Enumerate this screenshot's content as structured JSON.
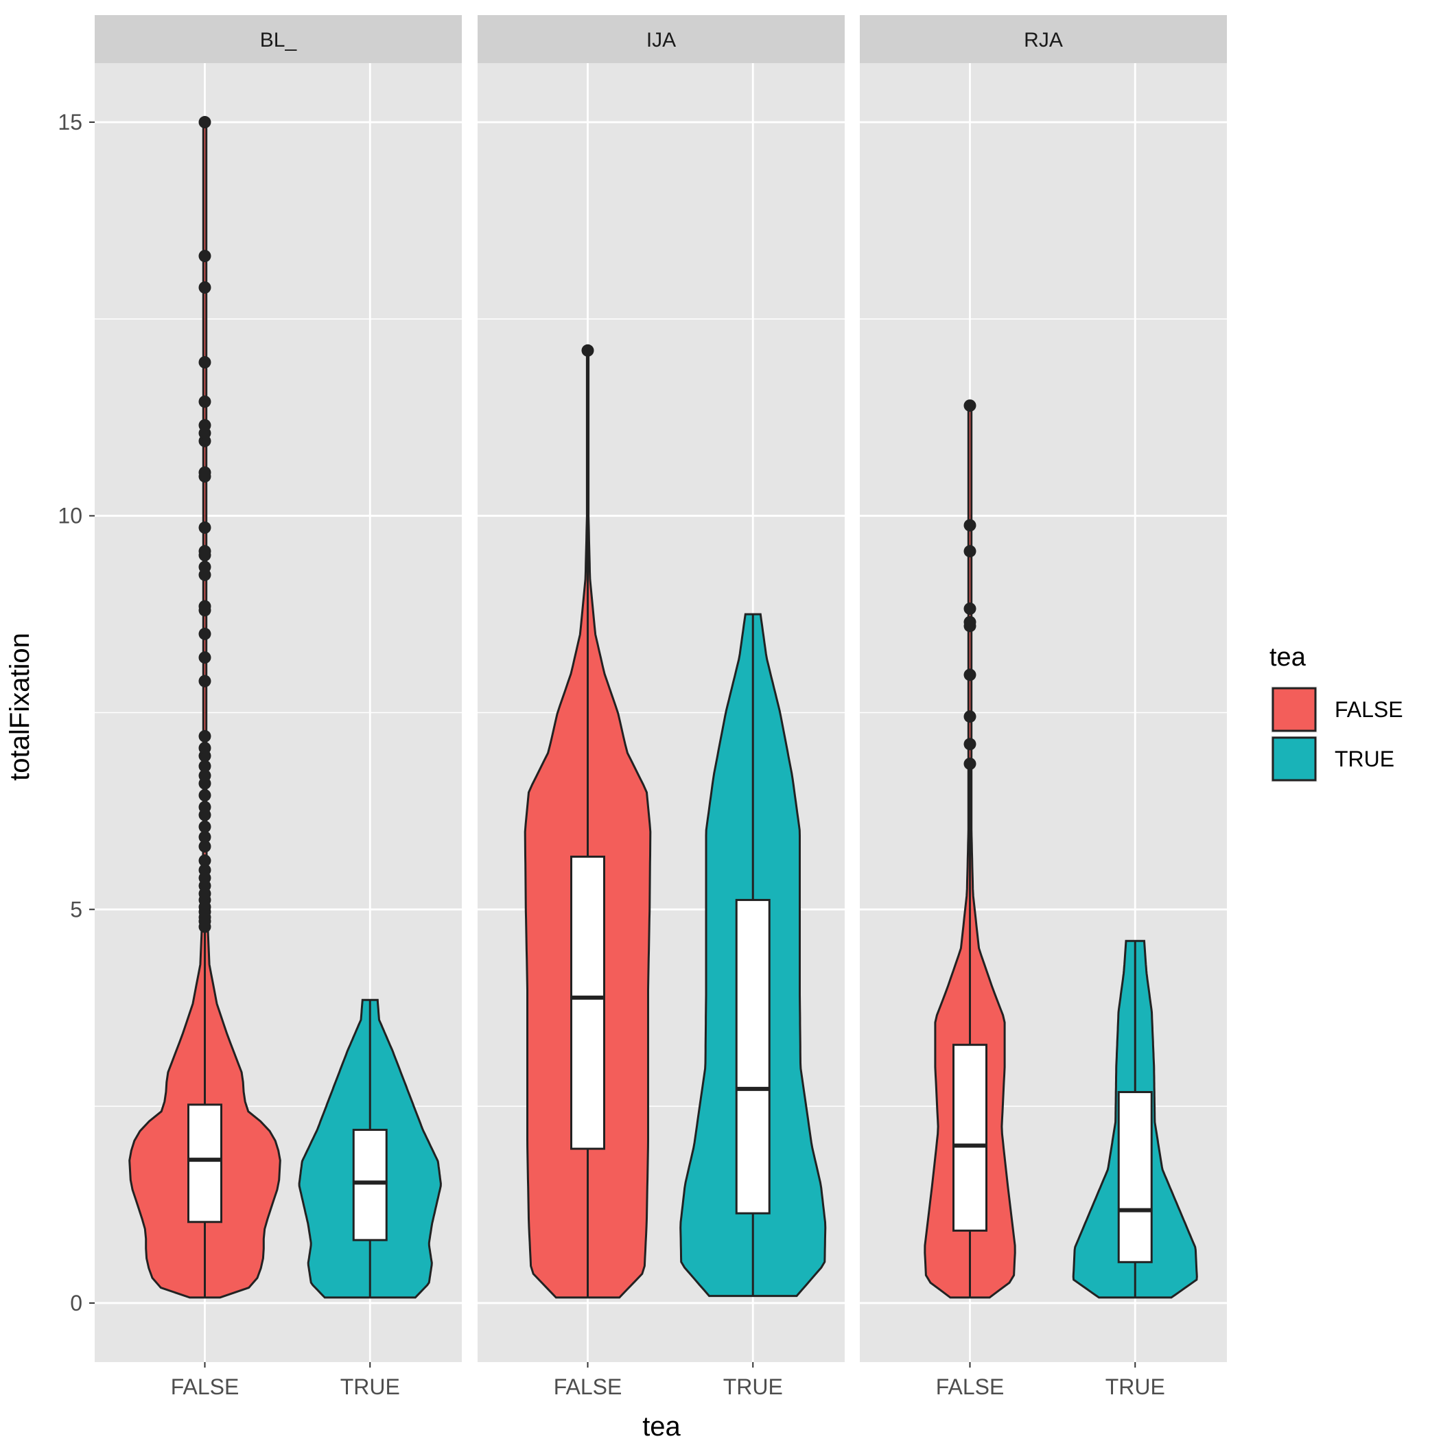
{
  "chart_data": {
    "type": "violin",
    "facet_variable": "",
    "facets": [
      "BL_",
      "IJA",
      "RJA"
    ],
    "categories": [
      "FALSE",
      "TRUE"
    ],
    "xlabel": "tea",
    "ylabel": "totalFixation",
    "ylim": [
      -0.75,
      15.75
    ],
    "yticks": [
      0,
      5,
      10,
      15
    ],
    "grid": true,
    "legend": {
      "title": "tea",
      "position": "right",
      "entries": [
        {
          "label": "FALSE",
          "color": "#F8766D"
        },
        {
          "label": "TRUE",
          "color": "#00BFC4"
        }
      ]
    },
    "colors": {
      "FALSE": "#F35E5A",
      "TRUE": "#19B3B8",
      "panel_bg": "#E5E5E5",
      "strip_bg": "#D0D0D0",
      "grid": "#FFFFFF",
      "outline": "#222222"
    },
    "panels": [
      {
        "facet": "BL_",
        "groups": [
          {
            "category": "FALSE",
            "box": {
              "q1": 1.03,
              "median": 1.82,
              "q3": 2.52,
              "whisker_low": 0.07,
              "whisker_high": 4.75
            },
            "outliers": [
              4.78,
              4.85,
              4.9,
              4.97,
              5.03,
              5.12,
              5.2,
              5.3,
              5.4,
              5.5,
              5.62,
              5.8,
              5.92,
              6.05,
              6.2,
              6.3,
              6.45,
              6.6,
              6.7,
              6.82,
              6.95,
              7.05,
              7.2,
              7.9,
              8.2,
              8.5,
              8.8,
              8.85,
              9.25,
              9.35,
              9.5,
              9.55,
              9.85,
              10.5,
              10.55,
              10.95,
              11.05,
              11.15,
              11.45,
              11.95,
              12.9,
              13.3,
              15.0
            ],
            "violin": {
              "min": 0.07,
              "max": 15.0,
              "width": [
                [
                  0.07,
                  0.2
                ],
                [
                  0.2,
                  0.6
                ],
                [
                  0.35,
                  0.72
                ],
                [
                  0.6,
                  0.78
                ],
                [
                  0.9,
                  0.78
                ],
                [
                  1.1,
                  0.84
                ],
                [
                  1.5,
                  0.98
                ],
                [
                  1.85,
                  1.0
                ],
                [
                  2.05,
                  0.94
                ],
                [
                  2.25,
                  0.82
                ],
                [
                  2.42,
                  0.58
                ],
                [
                  2.6,
                  0.52
                ],
                [
                  2.9,
                  0.5
                ],
                [
                  3.15,
                  0.4
                ],
                [
                  3.4,
                  0.3
                ],
                [
                  3.8,
                  0.16
                ],
                [
                  4.3,
                  0.06
                ],
                [
                  5.0,
                  0.03
                ],
                [
                  6.0,
                  0.02
                ],
                [
                  15.0,
                  0.02
                ]
              ]
            }
          },
          {
            "category": "TRUE",
            "box": {
              "q1": 0.8,
              "median": 1.53,
              "q3": 2.2,
              "whisker_low": 0.07,
              "whisker_high": 3.85
            },
            "outliers": [],
            "violin": {
              "min": 0.07,
              "max": 3.85,
              "width": [
                [
                  0.07,
                  0.6
                ],
                [
                  0.25,
                  0.78
                ],
                [
                  0.5,
                  0.82
                ],
                [
                  0.75,
                  0.78
                ],
                [
                  1.0,
                  0.82
                ],
                [
                  1.5,
                  0.94
                ],
                [
                  1.8,
                  0.9
                ],
                [
                  2.2,
                  0.7
                ],
                [
                  2.7,
                  0.5
                ],
                [
                  3.2,
                  0.3
                ],
                [
                  3.6,
                  0.12
                ],
                [
                  3.85,
                  0.1
                ]
              ]
            }
          }
        ]
      },
      {
        "facet": "IJA",
        "groups": [
          {
            "category": "FALSE",
            "box": {
              "q1": 1.96,
              "median": 3.88,
              "q3": 5.67,
              "whisker_low": 0.07,
              "whisker_high": 12.1
            },
            "outliers": [
              12.1
            ],
            "violin": {
              "min": 0.07,
              "max": 12.1,
              "width": [
                [
                  0.07,
                  0.42
                ],
                [
                  0.4,
                  0.75
                ],
                [
                  1.0,
                  0.78
                ],
                [
                  2.0,
                  0.8
                ],
                [
                  3.0,
                  0.8
                ],
                [
                  4.0,
                  0.8
                ],
                [
                  5.0,
                  0.82
                ],
                [
                  6.0,
                  0.83
                ],
                [
                  6.5,
                  0.78
                ],
                [
                  7.0,
                  0.52
                ],
                [
                  7.5,
                  0.4
                ],
                [
                  8.0,
                  0.22
                ],
                [
                  8.5,
                  0.1
                ],
                [
                  9.2,
                  0.03
                ],
                [
                  10.0,
                  0.01
                ],
                [
                  12.1,
                  0.01
                ]
              ]
            }
          },
          {
            "category": "TRUE",
            "box": {
              "q1": 1.14,
              "median": 2.72,
              "q3": 5.12,
              "whisker_low": 0.09,
              "whisker_high": 8.75
            },
            "outliers": [],
            "violin": {
              "min": 0.09,
              "max": 8.75,
              "width": [
                [
                  0.09,
                  0.58
                ],
                [
                  0.5,
                  0.95
                ],
                [
                  1.0,
                  0.96
                ],
                [
                  1.5,
                  0.9
                ],
                [
                  2.0,
                  0.78
                ],
                [
                  3.0,
                  0.63
                ],
                [
                  4.0,
                  0.62
                ],
                [
                  5.0,
                  0.62
                ],
                [
                  6.0,
                  0.62
                ],
                [
                  6.7,
                  0.52
                ],
                [
                  7.5,
                  0.36
                ],
                [
                  8.2,
                  0.18
                ],
                [
                  8.75,
                  0.1
                ]
              ]
            }
          }
        ]
      },
      {
        "facet": "RJA",
        "groups": [
          {
            "category": "FALSE",
            "box": {
              "q1": 0.92,
              "median": 2.0,
              "q3": 3.28,
              "whisker_low": 0.07,
              "whisker_high": 6.8
            },
            "outliers": [
              6.85,
              7.1,
              7.45,
              7.98,
              8.6,
              8.65,
              8.82,
              9.55,
              9.88,
              11.4
            ],
            "violin": {
              "min": 0.07,
              "max": 11.4,
              "width": [
                [
                  0.07,
                  0.26
                ],
                [
                  0.3,
                  0.58
                ],
                [
                  0.7,
                  0.6
                ],
                [
                  1.5,
                  0.5
                ],
                [
                  2.2,
                  0.42
                ],
                [
                  3.0,
                  0.46
                ],
                [
                  3.6,
                  0.46
                ],
                [
                  4.0,
                  0.3
                ],
                [
                  4.5,
                  0.12
                ],
                [
                  5.2,
                  0.04
                ],
                [
                  6.0,
                  0.02
                ],
                [
                  11.4,
                  0.02
                ]
              ]
            }
          },
          {
            "category": "TRUE",
            "box": {
              "q1": 0.52,
              "median": 1.18,
              "q3": 2.68,
              "whisker_low": 0.07,
              "whisker_high": 4.6
            },
            "outliers": [],
            "violin": {
              "min": 0.07,
              "max": 4.6,
              "width": [
                [
                  0.07,
                  0.48
                ],
                [
                  0.3,
                  0.82
                ],
                [
                  0.7,
                  0.8
                ],
                [
                  1.2,
                  0.58
                ],
                [
                  1.7,
                  0.36
                ],
                [
                  2.3,
                  0.26
                ],
                [
                  3.0,
                  0.25
                ],
                [
                  3.7,
                  0.22
                ],
                [
                  4.2,
                  0.15
                ],
                [
                  4.6,
                  0.12
                ]
              ]
            }
          }
        ]
      }
    ]
  }
}
